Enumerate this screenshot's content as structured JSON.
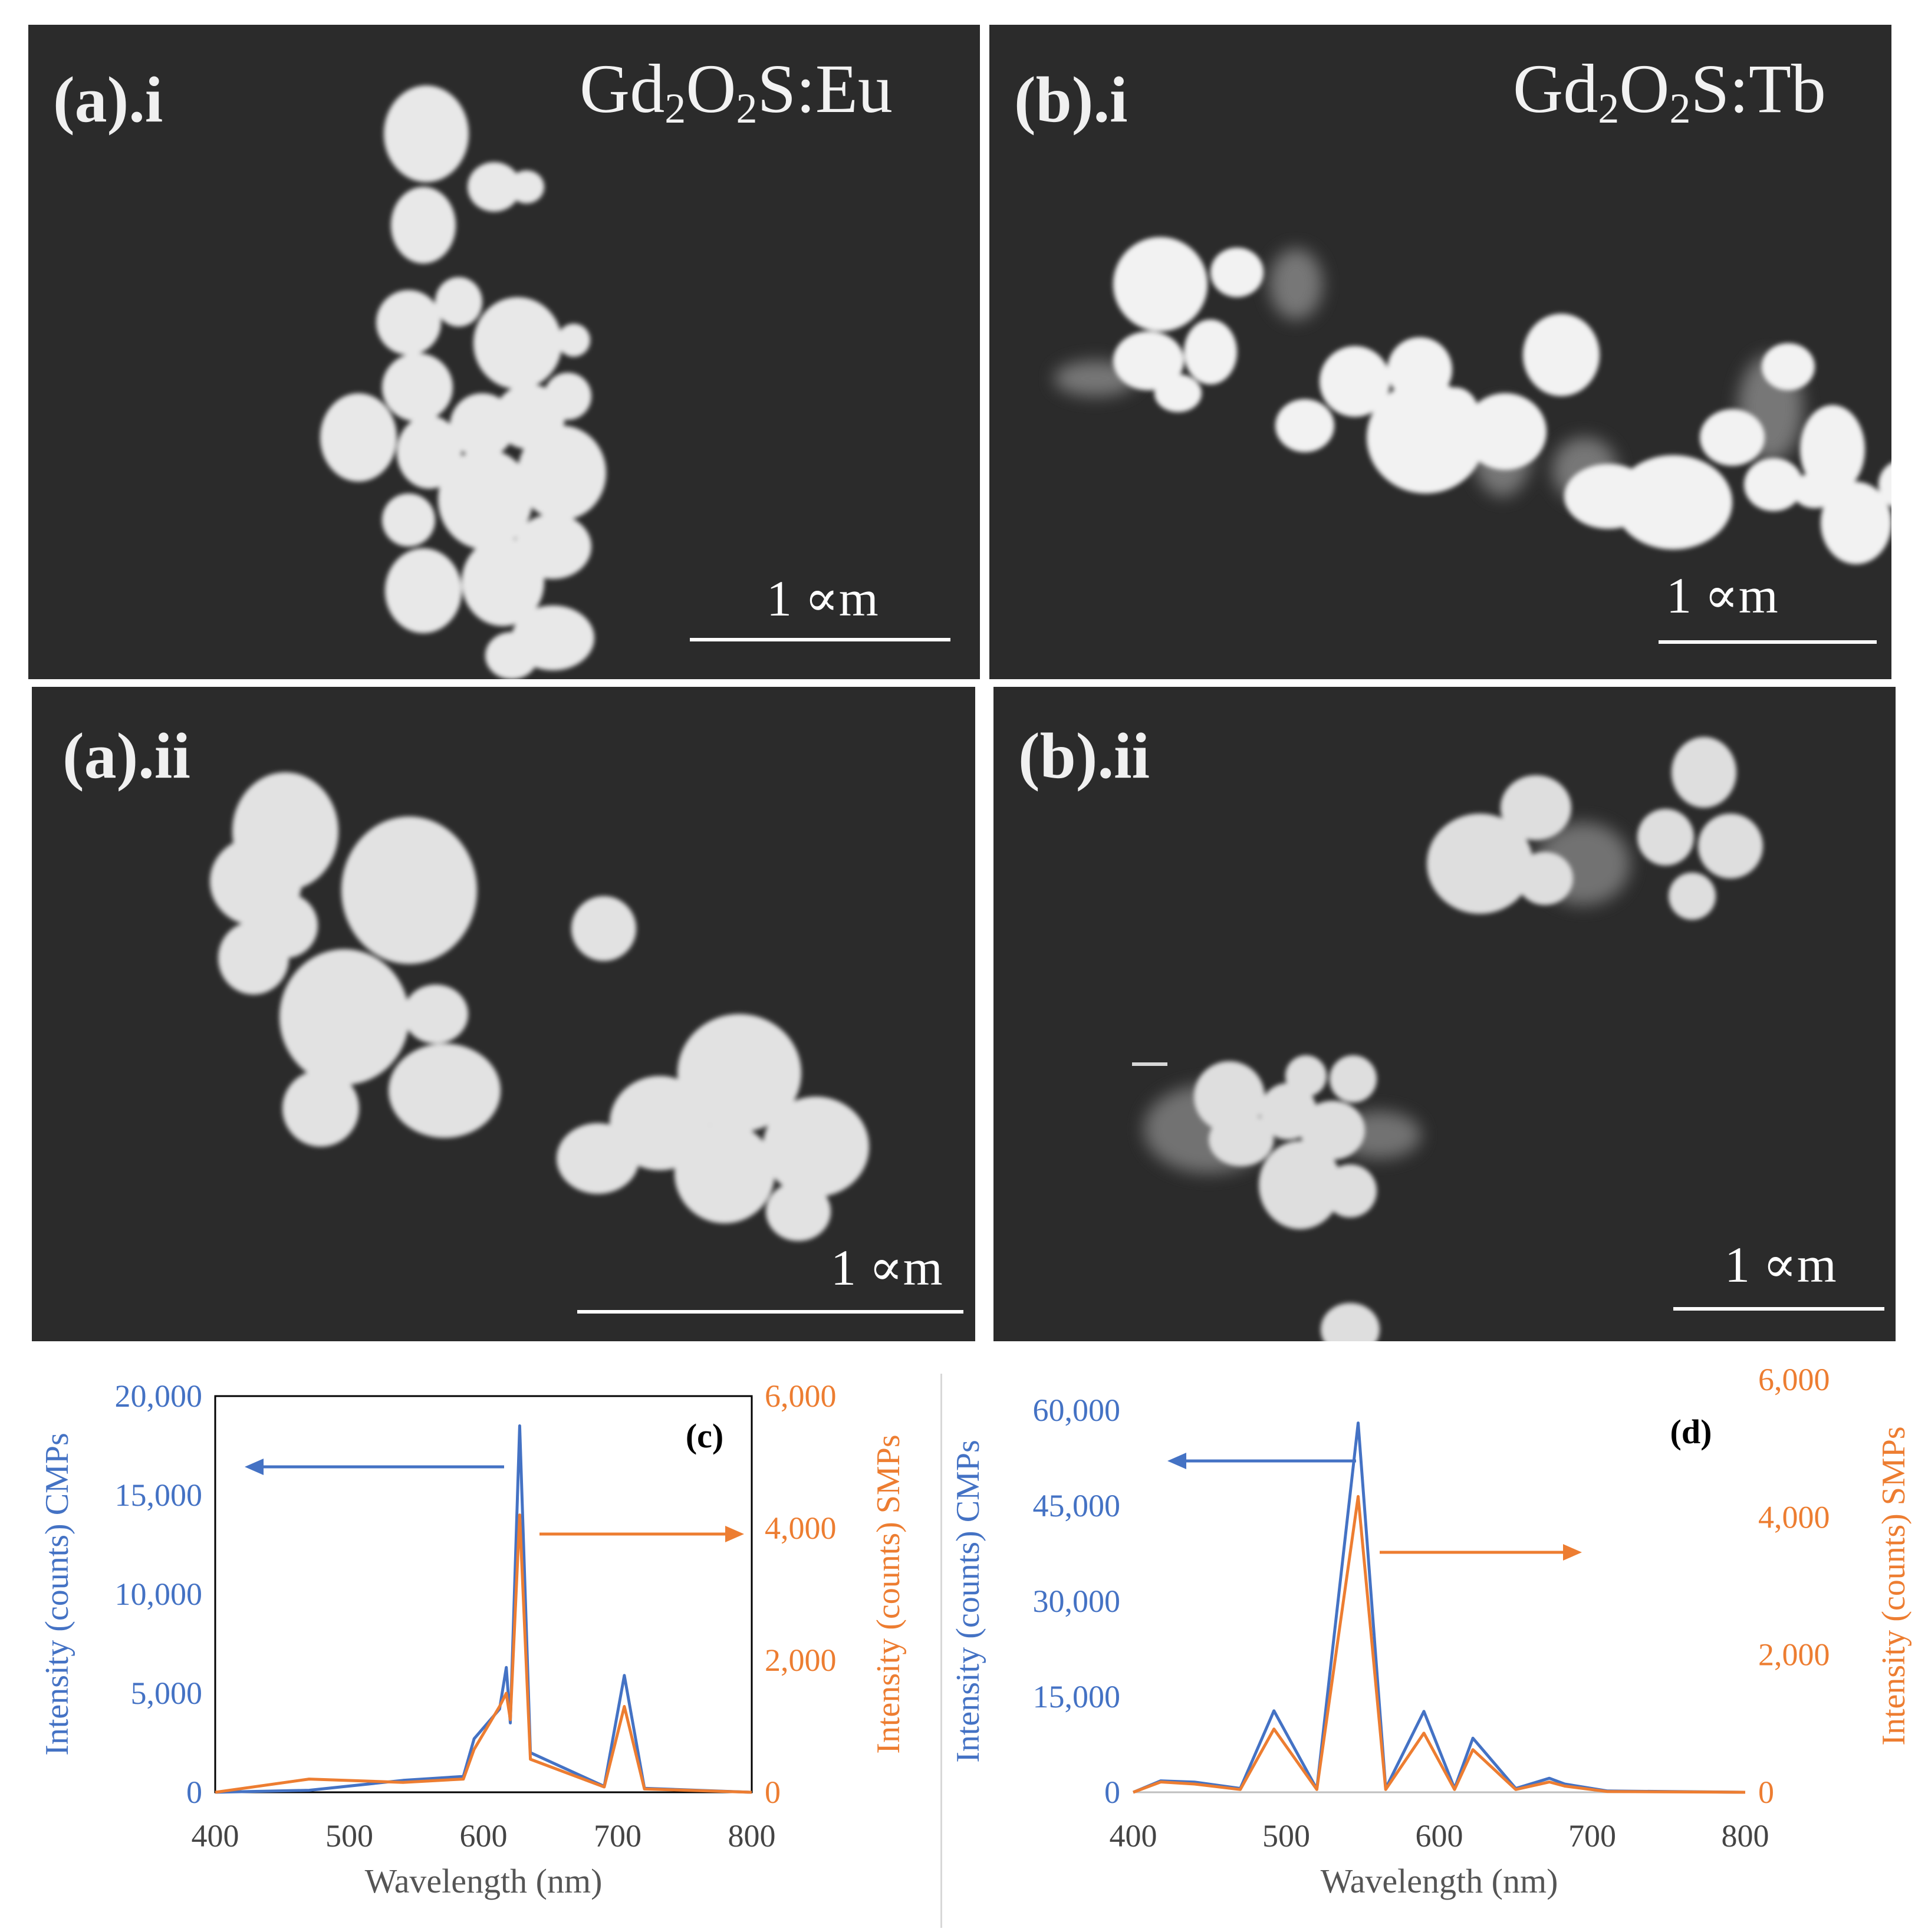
{
  "figure": {
    "panels": {
      "a_i": {
        "label": "(a).i",
        "formula_main": "Gd",
        "formula_sub1": "2",
        "formula_mid": "O",
        "formula_sub2": "2",
        "formula_end": "S:Eu",
        "scale_bar": "1 ∝m"
      },
      "b_i": {
        "label": "(b).i",
        "formula_main": "Gd",
        "formula_sub1": "2",
        "formula_mid": "O",
        "formula_sub2": "2",
        "formula_end": "S:Tb",
        "scale_bar": "1 ∝m"
      },
      "a_ii": {
        "label": "(a).ii",
        "scale_bar": "1 ∝m"
      },
      "b_ii": {
        "label": "(b).ii",
        "scale_bar": "1 ∝m"
      }
    },
    "colors": {
      "cmp": "#4472c4",
      "smp": "#ed7d31",
      "sem_bg": "#2b2b2b",
      "particle": "#e6e6e6"
    }
  },
  "chart_data": [
    {
      "id": "c",
      "type": "line",
      "panel_label": "(c)",
      "xlabel": "Wavelength (nm)",
      "ylabel_left": "Intensity (counts) CMPs",
      "ylabel_right": "Intensity (counts) SMPs",
      "xlim": [
        400,
        800
      ],
      "ylim_left": [
        0,
        20000
      ],
      "ylim_right": [
        0,
        6000
      ],
      "x_ticks": [
        "400",
        "500",
        "600",
        "700",
        "800"
      ],
      "y_ticks_left": [
        "0",
        "5,000",
        "10,000",
        "15,000",
        "20,000"
      ],
      "y_ticks_right": [
        "0",
        "2,000",
        "4,000",
        "6,000"
      ],
      "series": [
        {
          "name": "CMPs",
          "axis": "left",
          "x": [
            400,
            470,
            540,
            585,
            593,
            612,
            617,
            620,
            627,
            635,
            690,
            705,
            720,
            800
          ],
          "y": [
            0,
            100,
            600,
            800,
            2700,
            4200,
            6300,
            3500,
            18500,
            2000,
            300,
            5900,
            200,
            0
          ]
        },
        {
          "name": "SMPs",
          "axis": "right",
          "x": [
            400,
            470,
            540,
            585,
            593,
            612,
            617,
            620,
            627,
            635,
            690,
            705,
            720,
            800
          ],
          "y": [
            0,
            200,
            150,
            200,
            650,
            1300,
            1500,
            1100,
            4200,
            500,
            80,
            1300,
            50,
            0
          ]
        }
      ]
    },
    {
      "id": "d",
      "type": "line",
      "panel_label": "(d)",
      "xlabel": "Wavelength (nm)",
      "ylabel_left": "Intensity (counts) CMPs",
      "ylabel_right": "Intensity (counts) SMPs",
      "xlim": [
        400,
        800
      ],
      "ylim_left": [
        0,
        60000
      ],
      "ylim_right": [
        0,
        6000
      ],
      "x_ticks": [
        "400",
        "500",
        "600",
        "700",
        "800"
      ],
      "y_ticks_left": [
        "0",
        "15,000",
        "30,000",
        "45,000",
        "60,000"
      ],
      "y_ticks_right": [
        "0",
        "2,000",
        "4,000",
        "6,000"
      ],
      "series": [
        {
          "name": "CMPs",
          "axis": "left",
          "x": [
            400,
            418,
            440,
            470,
            492,
            520,
            547,
            565,
            590,
            610,
            622,
            650,
            672,
            682,
            710,
            800
          ],
          "y": [
            0,
            1800,
            1600,
            600,
            12800,
            500,
            58000,
            600,
            12700,
            600,
            8500,
            600,
            2200,
            1300,
            200,
            0
          ]
        },
        {
          "name": "SMPs",
          "axis": "right",
          "x": [
            400,
            418,
            440,
            470,
            492,
            520,
            547,
            565,
            590,
            610,
            622,
            650,
            672,
            682,
            710,
            800
          ],
          "y": [
            0,
            150,
            120,
            40,
            920,
            40,
            4300,
            40,
            860,
            40,
            620,
            40,
            150,
            90,
            10,
            0
          ]
        }
      ]
    }
  ]
}
